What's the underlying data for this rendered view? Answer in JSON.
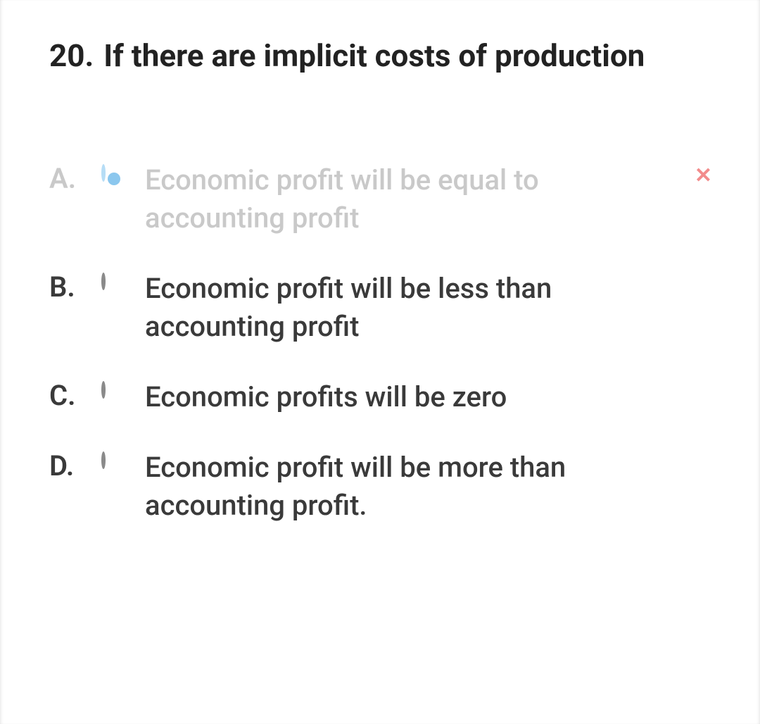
{
  "question": {
    "number": "20.",
    "text": "If there are implicit costs of production"
  },
  "options": [
    {
      "letter": "A.",
      "text": "Economic profit will be equal to accounting profit",
      "selected": true,
      "faded": true,
      "markedWrong": true
    },
    {
      "letter": "B.",
      "text": "Economic profit will be less than accounting profit",
      "selected": false,
      "faded": false,
      "markedWrong": false
    },
    {
      "letter": "C.",
      "text": "Economic profits will be zero",
      "selected": false,
      "faded": false,
      "markedWrong": false
    },
    {
      "letter": "D.",
      "text": "Economic profit will be more than accounting profit.",
      "selected": false,
      "faded": false,
      "markedWrong": false
    }
  ],
  "colors": {
    "text": "#3a3a3a",
    "fadedText": "#c9c9c9",
    "radioBorder": "#8a8a8a",
    "radioFadedBorder": "#b6ddf6",
    "radioDot": "#8bc7ee",
    "wrong": "#f28b8b",
    "background": "#ffffff"
  }
}
